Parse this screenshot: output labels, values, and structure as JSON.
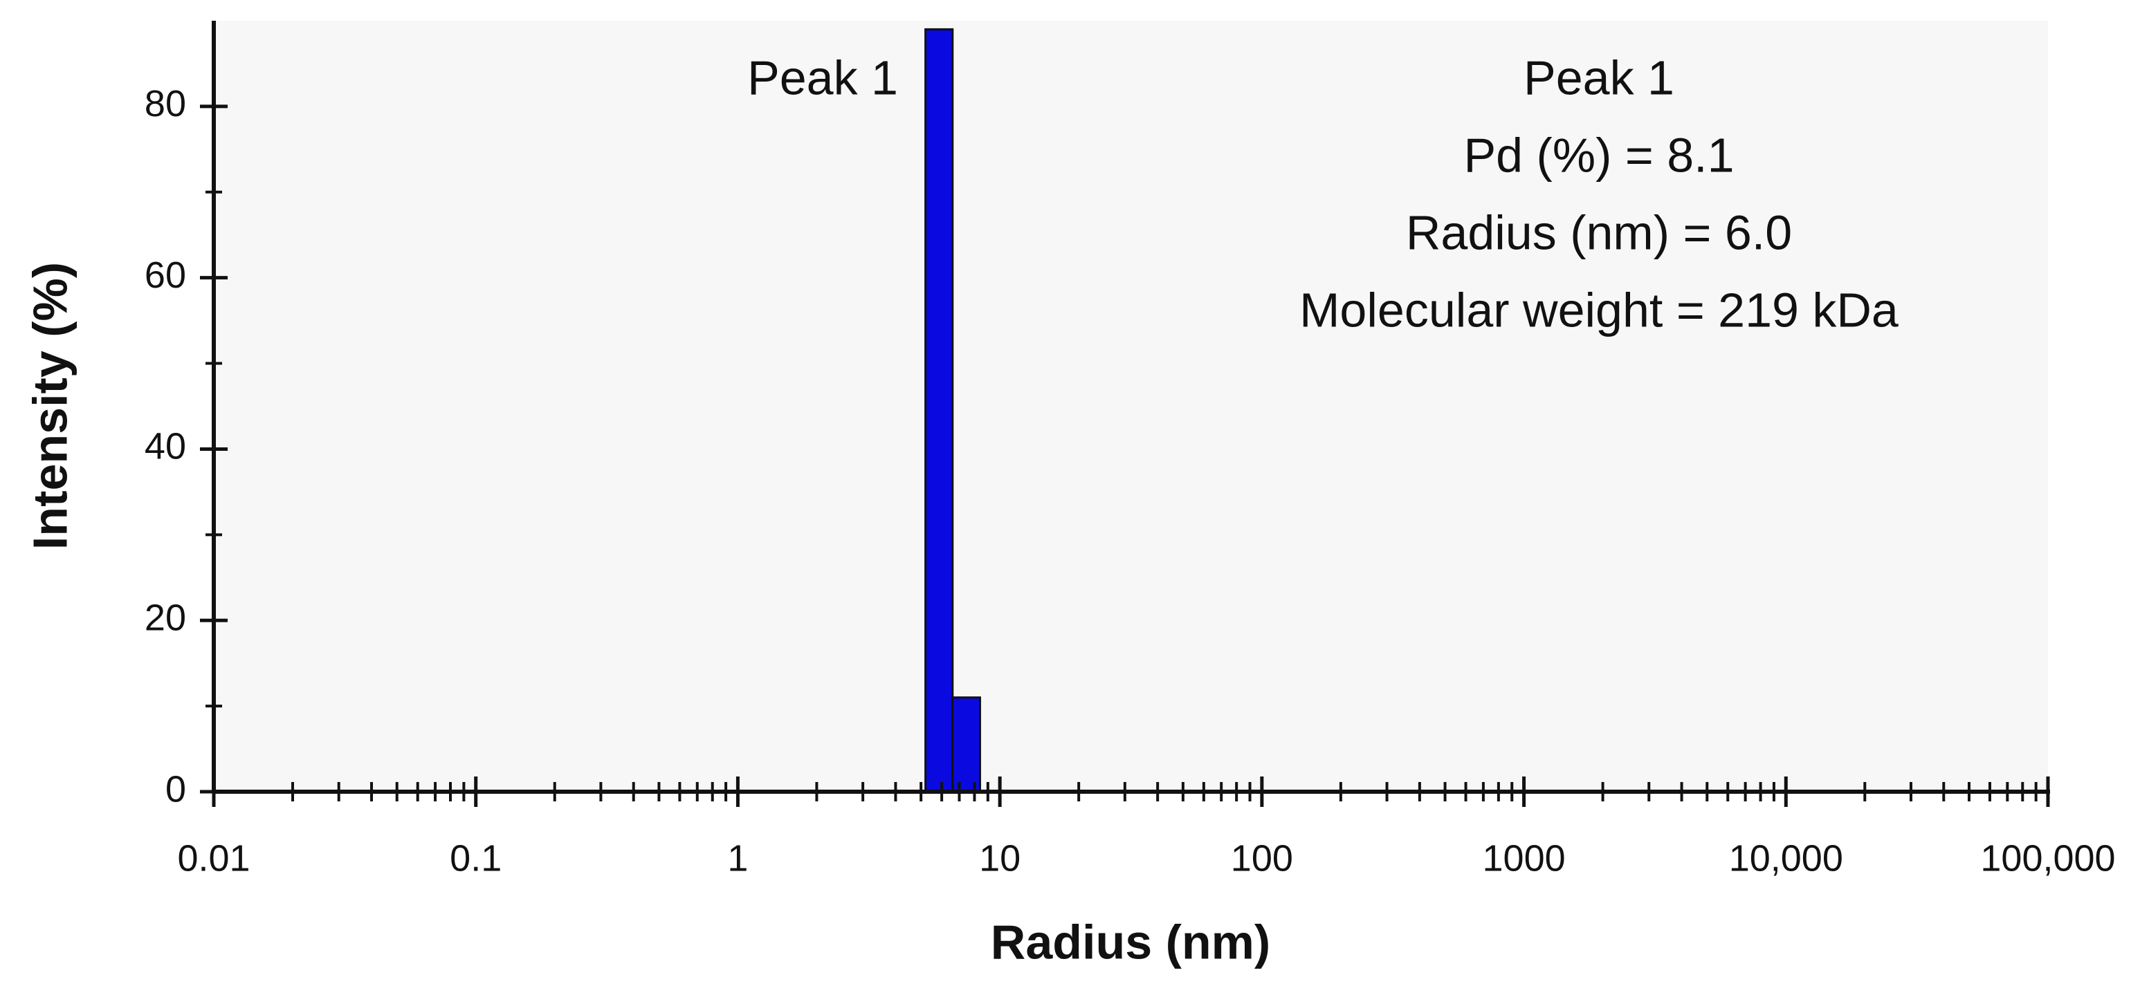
{
  "chart_data": {
    "type": "histogram",
    "xlabel": "Radius (nm)",
    "ylabel": "Intensity (%)",
    "bins": [
      5.2,
      6.6,
      8.4
    ],
    "counts": [
      89,
      11
    ],
    "color": "#0a0ae0",
    "xscale": "log",
    "xlim": [
      0.01,
      100000
    ],
    "ylim": [
      0,
      90
    ],
    "xticks": [
      0.01,
      0.1,
      1,
      10,
      100,
      1000,
      {
        "value": 10000,
        "label": "10,000"
      },
      {
        "value": 100000,
        "label": "100,000"
      }
    ],
    "xminorticks": [
      0.02,
      0.03,
      0.04,
      0.05,
      0.06,
      0.07,
      0.08,
      0.09,
      0.2,
      0.3,
      0.4,
      0.5,
      0.6,
      0.7,
      0.8,
      0.9,
      2,
      3,
      4,
      5,
      6,
      7,
      8,
      9,
      20,
      30,
      40,
      50,
      60,
      70,
      80,
      90,
      200,
      300,
      400,
      500,
      600,
      700,
      800,
      900,
      2000,
      3000,
      4000,
      5000,
      6000,
      7000,
      8000,
      9000,
      20000,
      30000,
      40000,
      50000,
      60000,
      70000,
      80000,
      90000
    ],
    "yticks": [
      0,
      20,
      40,
      60,
      80
    ],
    "yminorticks": [
      10,
      30,
      50,
      70
    ],
    "annotations": [
      "Peak 1",
      "Peak 1",
      "Pd (%) = 8.1",
      "Radius (nm) = 6.0",
      "Molecular weight = 219 kDa"
    ]
  }
}
